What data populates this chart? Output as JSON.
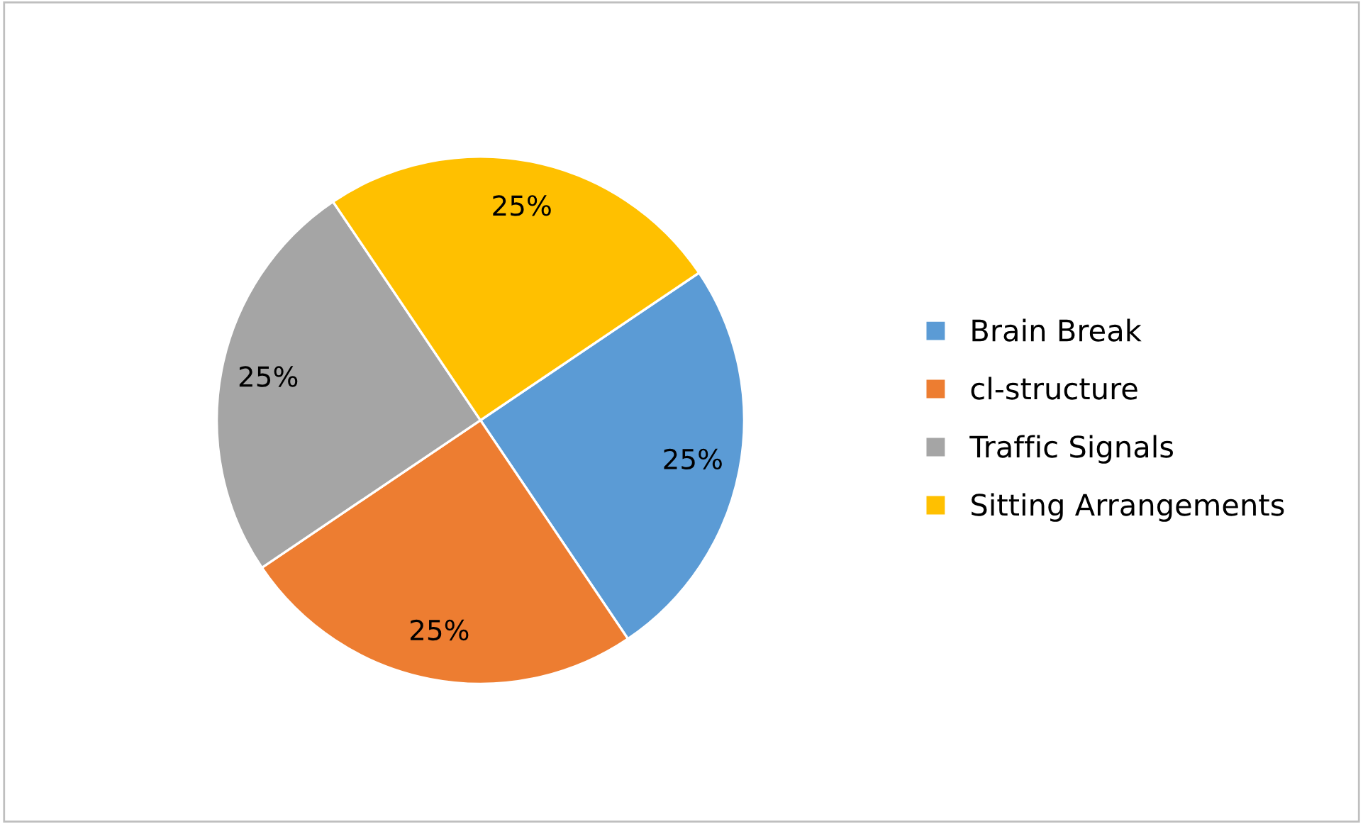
{
  "chart_data": {
    "type": "pie",
    "categories": [
      "Brain Break",
      "cl-structure",
      "Traffic Signals",
      "Sitting Arrangements"
    ],
    "values": [
      25,
      25,
      25,
      25
    ],
    "colors": [
      "#5b9bd5",
      "#ed7d31",
      "#a5a5a5",
      "#ffc000"
    ],
    "value_labels": [
      "25%",
      "25%",
      "25%",
      "25%"
    ],
    "legend": "right"
  }
}
